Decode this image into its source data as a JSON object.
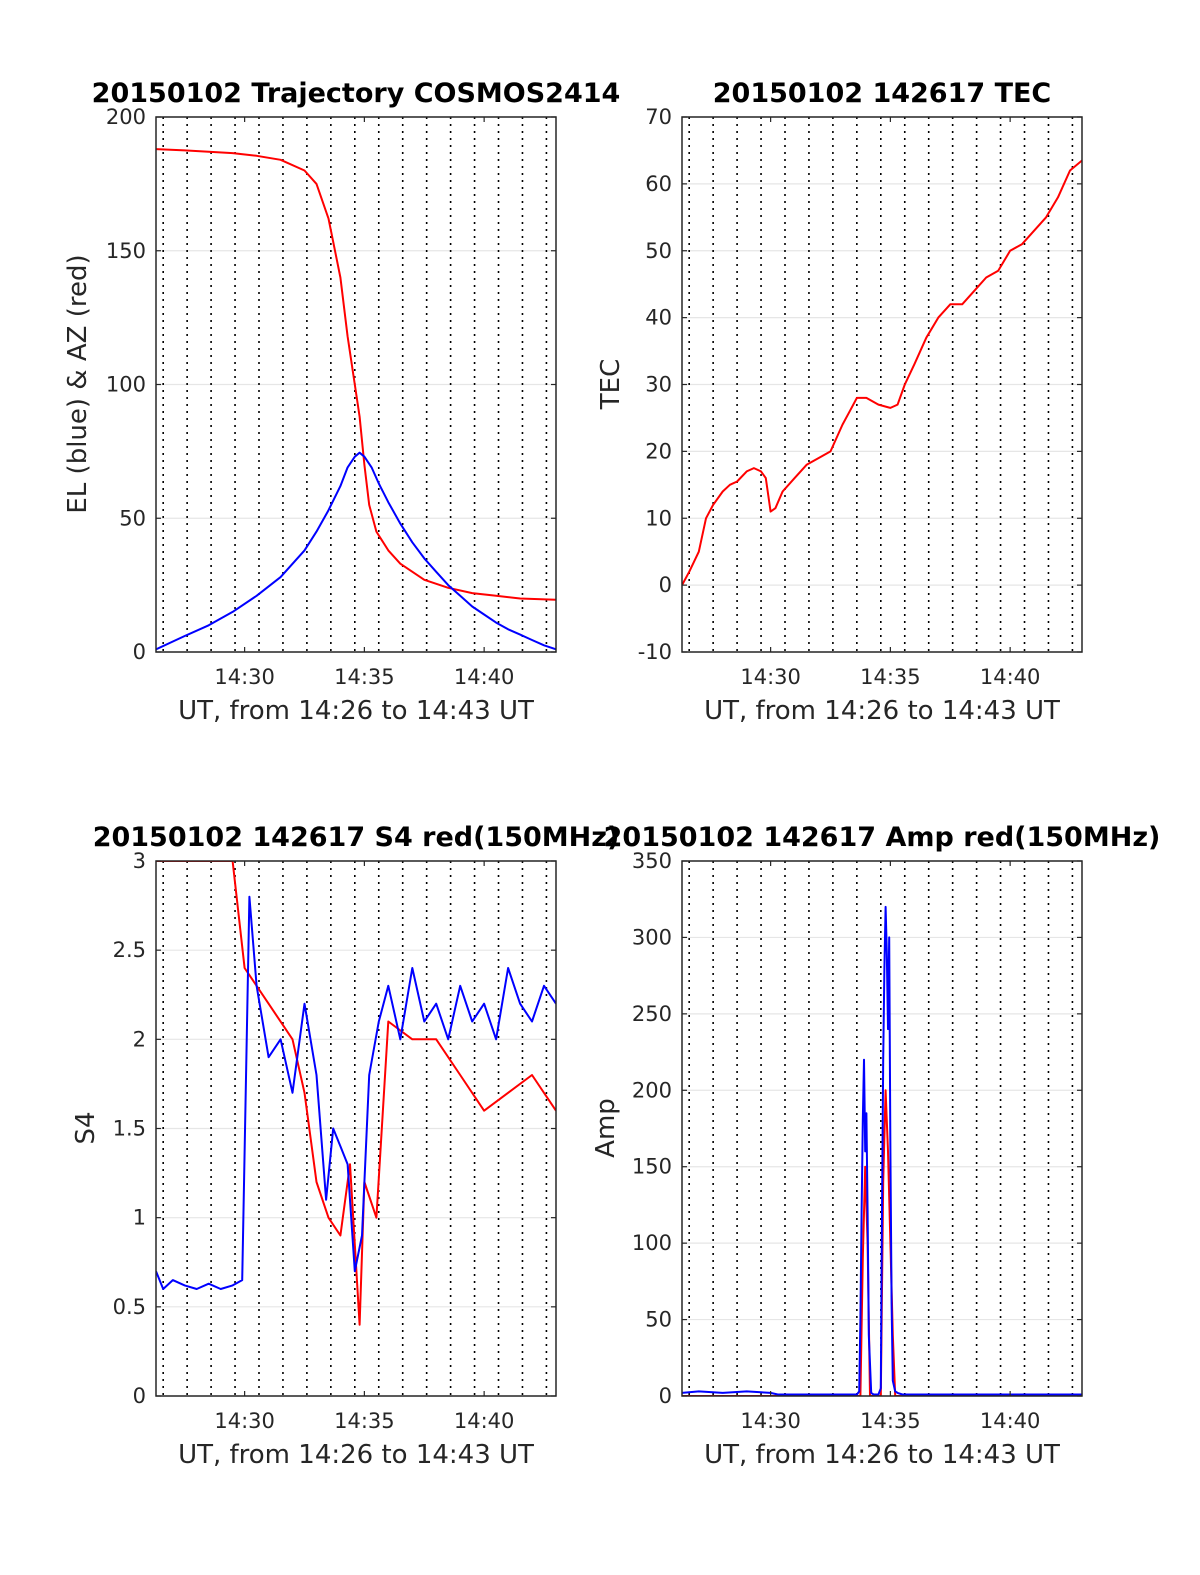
{
  "chart_data": [
    {
      "type": "line",
      "title": "20150102 Trajectory COSMOS2414",
      "xlabel": "UT, from 14:26 to 14:43 UT",
      "ylabel": "EL (blue) & AZ (red)",
      "xlim": [
        26.3,
        43.0
      ],
      "ylim": [
        0,
        200
      ],
      "xticks": [
        30,
        35,
        40
      ],
      "xtick_labels": [
        "14:30",
        "14:35",
        "14:40"
      ],
      "yticks": [
        0,
        50,
        100,
        150,
        200
      ],
      "ytick_labels": [
        "0",
        "50",
        "100",
        "150",
        "200"
      ],
      "vlines": [
        26.6,
        27.6,
        28.6,
        29.6,
        30.6,
        31.6,
        32.6,
        33.6,
        34.6,
        35.6,
        36.6,
        37.6,
        38.6,
        39.6,
        40.6,
        41.6,
        42.6
      ],
      "series": [
        {
          "color": "#ff0000",
          "x": [
            26.3,
            27.5,
            28.5,
            29.5,
            30.5,
            31.5,
            32.5,
            33.0,
            33.5,
            34.0,
            34.3,
            34.6,
            34.8,
            35.0,
            35.2,
            35.5,
            36.0,
            36.5,
            37.5,
            38.5,
            39.5,
            40.5,
            41.5,
            43.0
          ],
          "y": [
            188,
            187.5,
            187,
            186.5,
            185.5,
            184,
            180,
            175,
            162,
            140,
            118,
            100,
            88,
            70,
            55,
            45,
            38,
            33,
            27,
            24,
            22,
            21,
            20,
            19.5
          ]
        },
        {
          "color": "#0000ff",
          "x": [
            26.3,
            27.5,
            28.5,
            29.5,
            30.5,
            31.5,
            32.5,
            33.0,
            33.5,
            34.0,
            34.3,
            34.6,
            34.8,
            35.0,
            35.3,
            35.6,
            36.0,
            36.5,
            37.0,
            37.5,
            38.0,
            38.5,
            39.0,
            39.5,
            40.0,
            40.5,
            41.0,
            41.5,
            42.0,
            42.5,
            43.0
          ],
          "y": [
            1,
            6,
            10,
            15,
            21,
            28,
            38,
            45,
            53,
            62,
            69,
            73,
            74.5,
            73,
            69,
            63,
            56,
            48,
            41,
            35,
            30,
            25,
            21,
            17,
            14,
            11,
            8.5,
            6.5,
            4.5,
            2.5,
            1
          ]
        }
      ]
    },
    {
      "type": "line",
      "title": "20150102 142617 TEC",
      "xlabel": "UT, from 14:26 to 14:43 UT",
      "ylabel": "TEC",
      "xlim": [
        26.3,
        43.0
      ],
      "ylim": [
        -10,
        70
      ],
      "xticks": [
        30,
        35,
        40
      ],
      "xtick_labels": [
        "14:30",
        "14:35",
        "14:40"
      ],
      "yticks": [
        -10,
        0,
        10,
        20,
        30,
        40,
        50,
        60,
        70
      ],
      "ytick_labels": [
        "-10",
        "0",
        "10",
        "20",
        "30",
        "40",
        "50",
        "60",
        "70"
      ],
      "vlines": [
        26.6,
        27.6,
        28.6,
        29.6,
        30.6,
        31.6,
        32.6,
        33.6,
        34.6,
        35.6,
        36.6,
        37.6,
        38.6,
        39.6,
        40.6,
        41.6,
        42.6
      ],
      "series": [
        {
          "color": "#ff0000",
          "x": [
            26.3,
            26.6,
            27.0,
            27.3,
            27.6,
            28.0,
            28.3,
            28.6,
            29.0,
            29.3,
            29.6,
            29.8,
            30.0,
            30.2,
            30.5,
            31.0,
            31.5,
            32.0,
            32.5,
            33.0,
            33.3,
            33.6,
            34.0,
            34.5,
            35.0,
            35.3,
            35.6,
            36.0,
            36.5,
            37.0,
            37.5,
            38.0,
            38.5,
            39.0,
            39.5,
            40.0,
            40.5,
            41.0,
            41.5,
            42.0,
            42.5,
            43.0
          ],
          "y": [
            0,
            2,
            5,
            10,
            12,
            14,
            15,
            15.5,
            17,
            17.5,
            17,
            16,
            11,
            11.5,
            14,
            16,
            18,
            19,
            20,
            24,
            26,
            28,
            28,
            27,
            26.5,
            27,
            30,
            33,
            37,
            40,
            42,
            42,
            44,
            46,
            47,
            50,
            51,
            53,
            55,
            58,
            62,
            63.5
          ]
        }
      ]
    },
    {
      "type": "line",
      "title": "20150102 142617 S4 red(150MHz)",
      "xlabel": "UT, from 14:26 to 14:43 UT",
      "ylabel": "S4",
      "xlim": [
        26.3,
        43.0
      ],
      "ylim": [
        0,
        3
      ],
      "xticks": [
        30,
        35,
        40
      ],
      "xtick_labels": [
        "14:30",
        "14:35",
        "14:40"
      ],
      "yticks": [
        0,
        0.5,
        1,
        1.5,
        2,
        2.5,
        3
      ],
      "ytick_labels": [
        "0",
        "0.5",
        "1",
        "1.5",
        "2",
        "2.5",
        "3"
      ],
      "vlines": [
        26.6,
        27.6,
        28.6,
        29.6,
        30.6,
        31.6,
        32.6,
        33.6,
        34.6,
        35.6,
        36.6,
        37.6,
        38.6,
        39.6,
        40.6,
        41.6,
        42.6
      ],
      "series": [
        {
          "color": "#ff0000",
          "x": [
            26.3,
            29.5,
            30.0,
            31.0,
            32.0,
            32.5,
            33.0,
            33.5,
            34.0,
            34.4,
            34.8,
            35.0,
            35.5,
            36.0,
            37.0,
            38.0,
            39.0,
            40.0,
            41.0,
            42.0,
            43.0
          ],
          "y": [
            3,
            3,
            2.4,
            2.2,
            2.0,
            1.7,
            1.2,
            1.0,
            0.9,
            1.3,
            0.4,
            1.2,
            1.0,
            2.1,
            2.0,
            2.0,
            1.8,
            1.6,
            1.7,
            1.8,
            1.6
          ]
        },
        {
          "color": "#0000ff",
          "x": [
            26.3,
            26.6,
            27.0,
            27.5,
            28.0,
            28.5,
            29.0,
            29.5,
            29.9,
            30.2,
            30.5,
            31.0,
            31.5,
            32.0,
            32.5,
            33.0,
            33.4,
            33.7,
            34.0,
            34.3,
            34.6,
            34.9,
            35.2,
            35.6,
            36.0,
            36.5,
            37.0,
            37.5,
            38.0,
            38.5,
            39.0,
            39.5,
            40.0,
            40.5,
            41.0,
            41.5,
            42.0,
            42.5,
            43.0
          ],
          "y": [
            0.7,
            0.6,
            0.65,
            0.62,
            0.6,
            0.63,
            0.6,
            0.62,
            0.65,
            2.8,
            2.3,
            1.9,
            2.0,
            1.7,
            2.2,
            1.8,
            1.1,
            1.5,
            1.4,
            1.3,
            0.7,
            0.9,
            1.8,
            2.1,
            2.3,
            2.0,
            2.4,
            2.1,
            2.2,
            2.0,
            2.3,
            2.1,
            2.2,
            2.0,
            2.4,
            2.2,
            2.1,
            2.3,
            2.2
          ]
        }
      ]
    },
    {
      "type": "line",
      "title": "20150102 142617 Amp red(150MHz)",
      "xlabel": "UT, from 14:26 to 14:43 UT",
      "ylabel": "Amp",
      "xlim": [
        26.3,
        43.0
      ],
      "ylim": [
        0,
        350
      ],
      "xticks": [
        30,
        35,
        40
      ],
      "xtick_labels": [
        "14:30",
        "14:35",
        "14:40"
      ],
      "yticks": [
        0,
        50,
        100,
        150,
        200,
        250,
        300,
        350
      ],
      "ytick_labels": [
        "0",
        "50",
        "100",
        "150",
        "200",
        "250",
        "300",
        "350"
      ],
      "vlines": [
        26.6,
        27.6,
        28.6,
        29.6,
        30.6,
        31.6,
        32.6,
        33.6,
        34.6,
        35.6,
        36.6,
        37.6,
        38.6,
        39.6,
        40.6,
        41.6,
        42.6
      ],
      "series": [
        {
          "color": "#ff0000",
          "x": [
            26.3,
            30.0,
            33.5,
            33.75,
            33.85,
            33.95,
            34.05,
            34.15,
            34.4,
            34.6,
            34.7,
            34.8,
            34.9,
            35.0,
            35.1,
            35.2,
            35.5,
            43.0
          ],
          "y": [
            0,
            0,
            0,
            0,
            90,
            150,
            100,
            0,
            0,
            0,
            140,
            200,
            160,
            100,
            40,
            0,
            0,
            0
          ]
        },
        {
          "color": "#0000ff",
          "x": [
            26.3,
            27.0,
            28.0,
            29.0,
            30.0,
            30.3,
            31.0,
            32.0,
            33.0,
            33.6,
            33.7,
            33.75,
            33.8,
            33.85,
            33.9,
            33.95,
            34.0,
            34.05,
            34.1,
            34.2,
            34.3,
            34.4,
            34.5,
            34.6,
            34.65,
            34.7,
            34.75,
            34.8,
            34.85,
            34.9,
            34.95,
            35.0,
            35.05,
            35.1,
            35.2,
            35.3,
            35.5,
            36.0,
            38.0,
            40.0,
            43.0
          ],
          "y": [
            2,
            3,
            2,
            3,
            2,
            1,
            1,
            1,
            1,
            1,
            3,
            50,
            120,
            180,
            220,
            160,
            185,
            120,
            40,
            2,
            1,
            1,
            1,
            5,
            120,
            220,
            280,
            320,
            290,
            240,
            300,
            160,
            60,
            10,
            3,
            2,
            1,
            1,
            1,
            1,
            1
          ]
        }
      ]
    }
  ]
}
